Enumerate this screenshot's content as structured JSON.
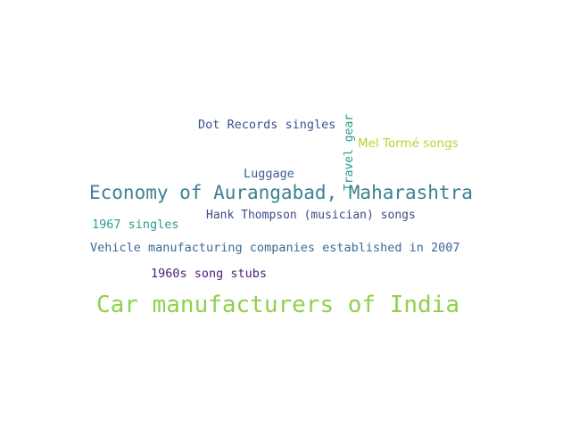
{
  "word_cloud": {
    "words": [
      {
        "text": "Car manufacturers of India",
        "color": "#8fd14f"
      },
      {
        "text": "Economy of Aurangabad, Maharashtra",
        "color": "#3b8293"
      },
      {
        "text": "Vehicle manufacturing companies established in 2007",
        "color": "#3b6a93"
      },
      {
        "text": "Hank Thompson (musician) songs",
        "color": "#3e4b8a"
      },
      {
        "text": "Dot Records singles",
        "color": "#3e4f8a"
      },
      {
        "text": "Mel Tormé songs",
        "color": "#b5d52d"
      },
      {
        "text": "1960s song stubs",
        "color": "#4a1e78"
      },
      {
        "text": "1967 singles",
        "color": "#2c9c8e"
      },
      {
        "text": "Luggage",
        "color": "#3c5f8e"
      },
      {
        "text": "Travel gear",
        "color": "#2a9a87"
      }
    ]
  }
}
